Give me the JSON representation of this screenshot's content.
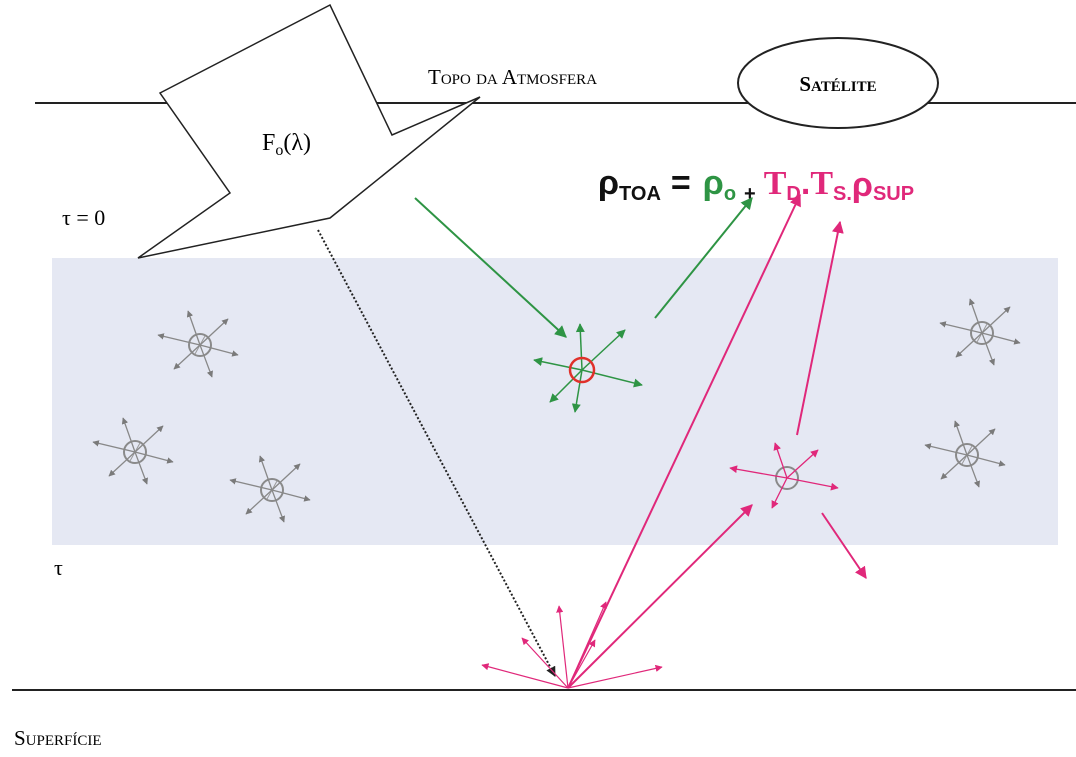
{
  "labels": {
    "toa": "Topo da Atmosfera",
    "satellite": "Satélite",
    "flux": "F",
    "flux_sub": "o",
    "flux_arg": "(λ)",
    "tau0": "τ  = 0",
    "tau": "τ",
    "surface": "Superfície"
  },
  "equation": {
    "lhs": "ρ",
    "lhs_sub": "TOA",
    "eq": "=",
    "t1": "ρ",
    "t1_sub": "o",
    "plus": "+",
    "t2": "T",
    "t2_sub": "D",
    "dot": ".",
    "t3": "T",
    "t3_sub": "S.",
    "t4": "ρ",
    "t4_sub": "SUP"
  }
}
